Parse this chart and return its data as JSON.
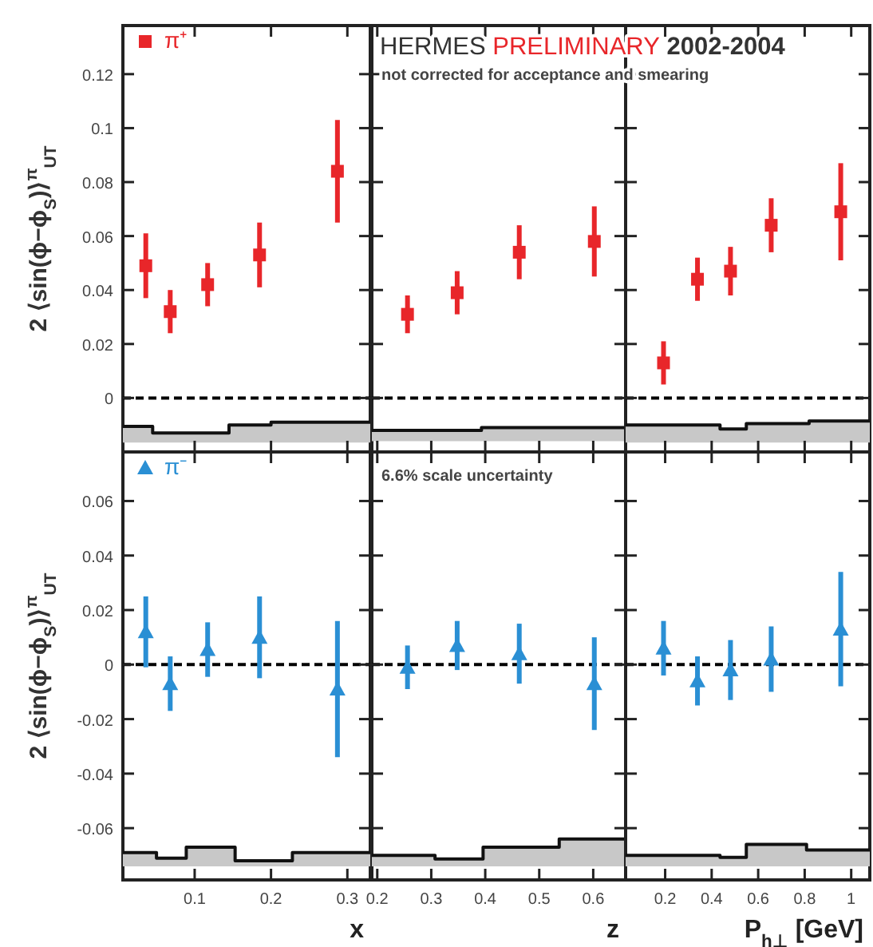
{
  "chart_data": [
    {
      "type": "scatter",
      "ylabel": "2 ⟨sin(ϕ−ϕ$_{S}$)⟩$^{π}$$_{UT}$",
      "xlim": [
        0.006,
        0.33
      ],
      "xticks": [
        0.1,
        0.2,
        0.3
      ],
      "ylim": [
        -0.02,
        0.138
      ],
      "yticks": [
        0,
        0.02,
        0.04,
        0.06,
        0.08,
        0.1,
        0.12
      ],
      "tick_labels": "y",
      "legend": "top left",
      "marker": "square",
      "series": [
        {
          "name": "π⁺",
          "color": "#e8262a",
          "x": [
            0.036,
            0.068,
            0.117,
            0.185,
            0.287
          ],
          "values": [
            0.049,
            0.032,
            0.042,
            0.053,
            0.084
          ],
          "errors": [
            0.012,
            0.008,
            0.008,
            0.012,
            0.019
          ]
        },
        {
          "type": "line",
          "marker": "none",
          "color": "#111111",
          "x": [
            0.006,
            0.045,
            0.045,
            0.145,
            0.145,
            0.2,
            0.2,
            0.33
          ],
          "values": [
            -0.0105,
            -0.0105,
            -0.013,
            -0.013,
            -0.01,
            -0.01,
            -0.009,
            -0.009
          ],
          "upper": [
            -0.0105,
            -0.0105,
            -0.013,
            -0.013,
            -0.01,
            -0.01,
            -0.009,
            -0.009
          ],
          "lower": [
            -0.0165,
            -0.0165,
            -0.0165,
            -0.0165,
            -0.0165,
            -0.0165,
            -0.0165,
            -0.0165
          ]
        }
      ],
      "ref_lines": [
        {
          "axis": "y",
          "value": 0,
          "line_style": "dashed",
          "color": "#000000"
        }
      ]
    },
    {
      "type": "scatter",
      "title": "HERMES PRELIMINARY 2002-2004",
      "annotations": [
        "not corrected for acceptance and smearing"
      ],
      "xlim": [
        0.19,
        0.66
      ],
      "xticks": [
        0.2,
        0.3,
        0.4,
        0.5,
        0.6
      ],
      "ylim": [
        -0.02,
        0.138
      ],
      "yticks": [
        0,
        0.02,
        0.04,
        0.06,
        0.08,
        0.1,
        0.12
      ],
      "tick_labels": false,
      "marker": "square",
      "series": [
        {
          "color": "#e8262a",
          "x": [
            0.256,
            0.348,
            0.463,
            0.602
          ],
          "values": [
            0.031,
            0.039,
            0.054,
            0.058
          ],
          "errors": [
            0.007,
            0.008,
            0.01,
            0.013
          ]
        },
        {
          "type": "line",
          "marker": "none",
          "color": "#111111",
          "x": [
            0.19,
            0.393,
            0.393,
            0.66
          ],
          "values": [
            -0.012,
            -0.012,
            -0.011,
            -0.011
          ],
          "upper": [
            -0.012,
            -0.012,
            -0.011,
            -0.011
          ],
          "lower": [
            -0.016,
            -0.016,
            -0.016,
            -0.016
          ]
        }
      ],
      "ref_lines": [
        {
          "axis": "y",
          "value": 0,
          "line_style": "dashed",
          "color": "#000000"
        }
      ]
    },
    {
      "type": "scatter",
      "xlim": [
        0.03,
        1.08
      ],
      "xticks": [
        0.2,
        0.4,
        0.6,
        0.8,
        1
      ],
      "ylim": [
        -0.02,
        0.138
      ],
      "yticks": [
        0,
        0.02,
        0.04,
        0.06,
        0.08,
        0.1,
        0.12
      ],
      "tick_labels": false,
      "marker": "square",
      "series": [
        {
          "color": "#e8262a",
          "x": [
            0.193,
            0.339,
            0.481,
            0.656,
            0.955
          ],
          "values": [
            0.013,
            0.044,
            0.047,
            0.064,
            0.069
          ],
          "errors": [
            0.008,
            0.008,
            0.009,
            0.01,
            0.018
          ]
        },
        {
          "type": "line",
          "marker": "none",
          "color": "#111111",
          "x": [
            0.03,
            0.436,
            0.436,
            0.549,
            0.549,
            0.819,
            0.819,
            1.08
          ],
          "values": [
            -0.01,
            -0.01,
            -0.0115,
            -0.0115,
            -0.0095,
            -0.0095,
            -0.0085,
            -0.0085
          ],
          "upper": [
            -0.01,
            -0.01,
            -0.0115,
            -0.0115,
            -0.0095,
            -0.0095,
            -0.0085,
            -0.0085
          ],
          "lower": [
            -0.0165,
            -0.0165,
            -0.0165,
            -0.0165,
            -0.0165,
            -0.0165,
            -0.0165,
            -0.0165
          ]
        }
      ],
      "ref_lines": [
        {
          "axis": "y",
          "value": 0,
          "line_style": "dashed",
          "color": "#000000"
        }
      ]
    },
    {
      "type": "scatter",
      "xlabel": "x",
      "ylabel": "2 ⟨sin(ϕ−ϕ$_{S}$)⟩$^{π}$$_{UT}$",
      "xlim": [
        0.006,
        0.33
      ],
      "xticks": [
        0.1,
        0.2,
        0.3
      ],
      "ylim": [
        -0.079,
        0.078
      ],
      "yticks": [
        -0.06,
        -0.04,
        -0.02,
        0,
        0.02,
        0.04,
        0.06
      ],
      "legend": "top left",
      "marker": "triangle",
      "series": [
        {
          "name": "π⁻",
          "color": "#2a8fd4",
          "x": [
            0.036,
            0.068,
            0.117,
            0.185,
            0.287
          ],
          "values": [
            0.012,
            -0.007,
            0.0055,
            0.01,
            -0.009
          ],
          "errors": [
            0.013,
            0.01,
            0.01,
            0.015,
            0.025
          ]
        },
        {
          "type": "line",
          "marker": "none",
          "color": "#111111",
          "x": [
            0.006,
            0.05,
            0.05,
            0.089,
            0.089,
            0.153,
            0.153,
            0.228,
            0.228,
            0.33
          ],
          "values": [
            -0.069,
            -0.069,
            -0.071,
            -0.071,
            -0.067,
            -0.067,
            -0.072,
            -0.072,
            -0.069,
            -0.069
          ],
          "upper": [
            -0.069,
            -0.069,
            -0.071,
            -0.071,
            -0.067,
            -0.067,
            -0.072,
            -0.072,
            -0.069,
            -0.069
          ],
          "lower": [
            -0.074,
            -0.074,
            -0.074,
            -0.074,
            -0.074,
            -0.074,
            -0.074,
            -0.074,
            -0.074,
            -0.074
          ]
        }
      ],
      "ref_lines": [
        {
          "axis": "y",
          "value": 0,
          "line_style": "dashed",
          "color": "#000000"
        }
      ]
    },
    {
      "type": "scatter",
      "xlabel": "z",
      "annotations": [
        "6.6% scale uncertainty"
      ],
      "xlim": [
        0.19,
        0.66
      ],
      "xticks": [
        0.2,
        0.3,
        0.4,
        0.5,
        0.6
      ],
      "ylim": [
        -0.079,
        0.078
      ],
      "yticks": [
        -0.06,
        -0.04,
        -0.02,
        0,
        0.02,
        0.04,
        0.06
      ],
      "tick_labels": "x",
      "marker": "triangle",
      "series": [
        {
          "color": "#2a8fd4",
          "x": [
            0.256,
            0.348,
            0.463,
            0.602
          ],
          "values": [
            -0.001,
            0.007,
            0.004,
            -0.007
          ],
          "errors": [
            0.008,
            0.009,
            0.011,
            0.017
          ]
        },
        {
          "type": "line",
          "marker": "none",
          "color": "#111111",
          "x": [
            0.19,
            0.307,
            0.307,
            0.396,
            0.396,
            0.537,
            0.537,
            0.66
          ],
          "values": [
            -0.07,
            -0.07,
            -0.0713,
            -0.0713,
            -0.067,
            -0.067,
            -0.064,
            -0.064
          ],
          "upper": [
            -0.07,
            -0.07,
            -0.0713,
            -0.0713,
            -0.067,
            -0.067,
            -0.064,
            -0.064
          ],
          "lower": [
            -0.074,
            -0.074,
            -0.074,
            -0.074,
            -0.074,
            -0.074,
            -0.074,
            -0.074
          ]
        }
      ],
      "ref_lines": [
        {
          "axis": "y",
          "value": 0,
          "line_style": "dashed",
          "color": "#000000"
        }
      ]
    },
    {
      "type": "scatter",
      "xlabel": "P$_{h⊥}$ [GeV]",
      "xlim": [
        0.03,
        1.08
      ],
      "xticks": [
        0.2,
        0.4,
        0.6,
        0.8,
        1
      ],
      "ylim": [
        -0.079,
        0.078
      ],
      "yticks": [
        -0.06,
        -0.04,
        -0.02,
        0,
        0.02,
        0.04,
        0.06
      ],
      "tick_labels": "x",
      "marker": "triangle",
      "series": [
        {
          "color": "#2a8fd4",
          "x": [
            0.193,
            0.339,
            0.481,
            0.656,
            0.955
          ],
          "values": [
            0.006,
            -0.006,
            -0.002,
            0.002,
            0.013
          ],
          "errors": [
            0.01,
            0.009,
            0.011,
            0.012,
            0.021
          ]
        },
        {
          "type": "line",
          "marker": "none",
          "color": "#111111",
          "x": [
            0.03,
            0.436,
            0.436,
            0.549,
            0.549,
            0.808,
            0.808,
            1.08
          ],
          "values": [
            -0.07,
            -0.07,
            -0.0707,
            -0.0707,
            -0.066,
            -0.066,
            -0.068,
            -0.068
          ],
          "upper": [
            -0.07,
            -0.07,
            -0.0707,
            -0.0707,
            -0.066,
            -0.066,
            -0.068,
            -0.068
          ],
          "lower": [
            -0.074,
            -0.074,
            -0.074,
            -0.074,
            -0.074,
            -0.074,
            -0.074,
            -0.074
          ]
        }
      ],
      "ref_lines": [
        {
          "axis": "y",
          "value": 0,
          "line_style": "dashed",
          "color": "#000000"
        }
      ]
    }
  ]
}
